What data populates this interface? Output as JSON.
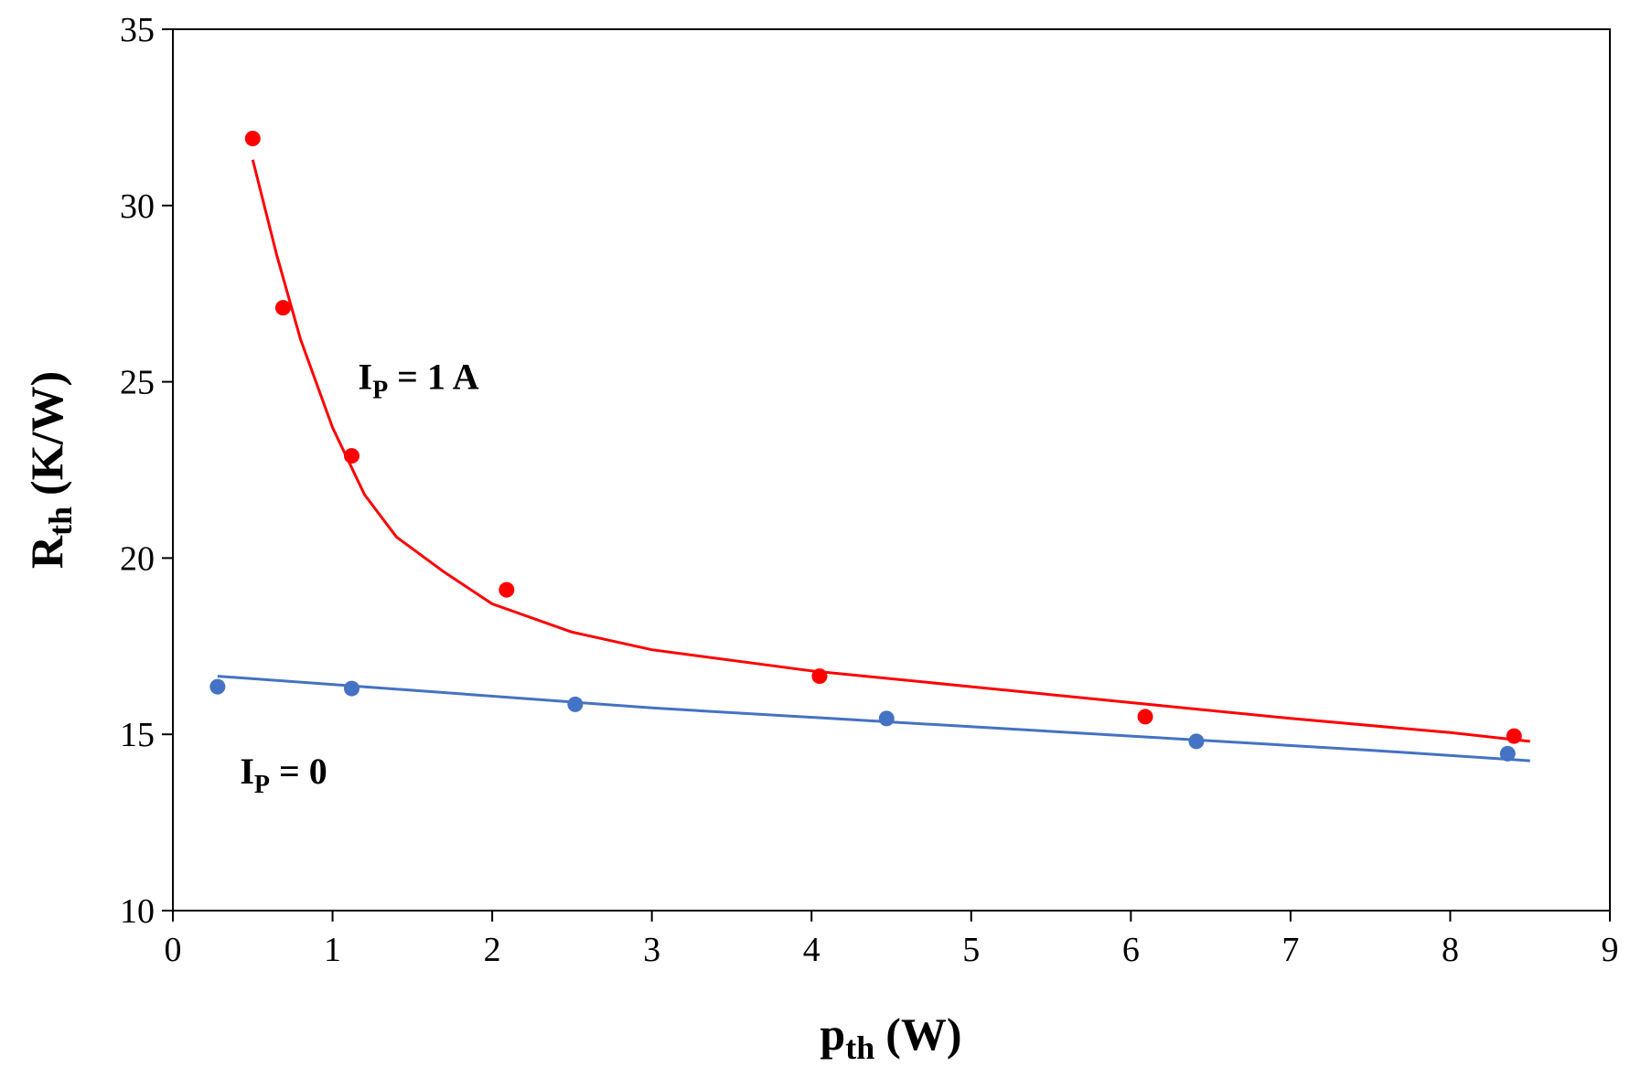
{
  "chart_data": {
    "type": "scatter",
    "title": "",
    "xlabel": {
      "main": "p",
      "sub": "th",
      "unit": "(W)"
    },
    "ylabel": {
      "main": "R",
      "sub": "th",
      "unit": "(K/W)"
    },
    "xlim": [
      0,
      9
    ],
    "ylim": [
      10,
      35
    ],
    "xticks": [
      0,
      1,
      2,
      3,
      4,
      5,
      6,
      7,
      8,
      9
    ],
    "yticks": [
      10,
      15,
      20,
      25,
      30,
      35
    ],
    "grid": false,
    "series": [
      {
        "name": "I_P = 1 A",
        "color": "#ff0000",
        "points": [
          {
            "x": 0.5,
            "y": 31.9
          },
          {
            "x": 0.69,
            "y": 27.1
          },
          {
            "x": 1.12,
            "y": 22.9
          },
          {
            "x": 2.09,
            "y": 19.1
          },
          {
            "x": 4.05,
            "y": 16.65
          },
          {
            "x": 6.09,
            "y": 15.5
          },
          {
            "x": 8.4,
            "y": 14.95
          }
        ],
        "fit": [
          {
            "x": 0.5,
            "y": 31.3
          },
          {
            "x": 0.65,
            "y": 28.6
          },
          {
            "x": 0.8,
            "y": 26.2
          },
          {
            "x": 1.0,
            "y": 23.7
          },
          {
            "x": 1.2,
            "y": 21.8
          },
          {
            "x": 1.4,
            "y": 20.6
          },
          {
            "x": 1.7,
            "y": 19.6
          },
          {
            "x": 2.0,
            "y": 18.7
          },
          {
            "x": 2.5,
            "y": 17.9
          },
          {
            "x": 3.0,
            "y": 17.4
          },
          {
            "x": 4.0,
            "y": 16.8
          },
          {
            "x": 5.0,
            "y": 16.35
          },
          {
            "x": 6.0,
            "y": 15.9
          },
          {
            "x": 7.0,
            "y": 15.45
          },
          {
            "x": 8.0,
            "y": 15.05
          },
          {
            "x": 8.5,
            "y": 14.8
          }
        ]
      },
      {
        "name": "I_P = 0",
        "color": "#4472c4",
        "points": [
          {
            "x": 0.28,
            "y": 16.35
          },
          {
            "x": 1.12,
            "y": 16.3
          },
          {
            "x": 2.52,
            "y": 15.85
          },
          {
            "x": 4.47,
            "y": 15.45
          },
          {
            "x": 6.41,
            "y": 14.8
          },
          {
            "x": 8.36,
            "y": 14.45
          }
        ],
        "fit": [
          {
            "x": 0.28,
            "y": 16.65
          },
          {
            "x": 1.5,
            "y": 16.25
          },
          {
            "x": 3.0,
            "y": 15.75
          },
          {
            "x": 4.5,
            "y": 15.35
          },
          {
            "x": 6.0,
            "y": 14.95
          },
          {
            "x": 7.5,
            "y": 14.55
          },
          {
            "x": 8.5,
            "y": 14.25
          }
        ]
      }
    ],
    "annotations": [
      {
        "id": "ip1",
        "main": "I",
        "sub": "P",
        "rest": " = 1 A",
        "x": 1.16,
        "y": 24.8
      },
      {
        "id": "ip0",
        "main": "I",
        "sub": "P",
        "rest": " = 0",
        "x": 0.42,
        "y": 13.6
      }
    ]
  }
}
